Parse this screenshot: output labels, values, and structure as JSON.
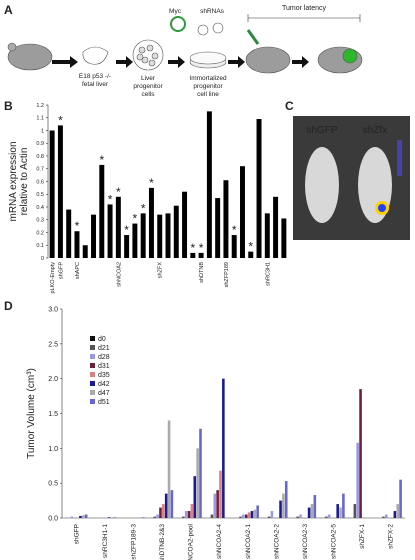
{
  "panel_labels": [
    "A",
    "B",
    "C",
    "D"
  ],
  "schematic": {
    "myc": "Myc",
    "shrnas": "shRNAs",
    "latency": "Tumor latency",
    "step1": [
      "E18 p53 -/-",
      "fetal liver"
    ],
    "step2": [
      "Liver",
      "progenitor",
      "cells"
    ],
    "step3": [
      "Immortalized",
      "progenitor",
      "cell line"
    ]
  },
  "imaging": {
    "left": "shGFP",
    "right": "shZfx"
  },
  "chart_data": [
    {
      "type": "bar",
      "ylabel": [
        "mRNA expression",
        "relative to Actin"
      ],
      "categories": [
        "pLKO-Empty",
        "shGFP",
        null,
        "shAPC",
        null,
        null,
        null,
        null,
        "shNCOA2",
        null,
        null,
        null,
        null,
        "shZFX",
        null,
        null,
        null,
        null,
        "shDTNB",
        null,
        null,
        "shZFP189",
        null,
        null,
        null,
        null,
        "shRC3H1",
        null,
        null
      ],
      "values": [
        1.0,
        1.04,
        0.38,
        0.21,
        0.1,
        0.34,
        0.73,
        0.42,
        0.48,
        0.18,
        0.27,
        0.35,
        0.55,
        0.34,
        0.35,
        0.41,
        0.52,
        0.04,
        0.04,
        1.15,
        0.47,
        0.61,
        0.18,
        0.72,
        0.05,
        1.09,
        0.35,
        0.48,
        0.31
      ],
      "stars": [
        null,
        "*",
        null,
        "*",
        null,
        null,
        "*",
        "*",
        "*",
        "*",
        "*",
        "*",
        "*",
        null,
        null,
        null,
        null,
        "*",
        "*",
        null,
        null,
        null,
        "*",
        null,
        "*",
        null,
        null,
        null,
        null
      ],
      "color": "#000000",
      "star_color": "#5b7fc4",
      "ylim": [
        0,
        1.2
      ],
      "yticks": [
        0,
        0.1,
        0.2,
        0.3,
        0.4,
        0.5,
        0.6,
        0.7,
        0.8,
        0.9,
        1,
        1.1,
        1.2
      ],
      "grid": false
    },
    {
      "type": "grouped-bar",
      "ylabel": "Tumor Volume (cm³)",
      "categories": [
        "shGFP",
        "shRC3H1-1",
        "shZFP189-3",
        "shDTNB-2&3",
        "shNCOA2-pool",
        "shNCOA2-4",
        "shNCOA2-1",
        "shNCOA2-2",
        "shNCOA2-3",
        "shNCOA2-5",
        "shZFX-1",
        "shZFX-2"
      ],
      "series": [
        {
          "name": "d0",
          "color": "#111111",
          "values": [
            0,
            0,
            0,
            0,
            0,
            0,
            0,
            0,
            0,
            0,
            0,
            0
          ]
        },
        {
          "name": "d21",
          "color": "#555555",
          "values": [
            0,
            0,
            0,
            0.02,
            0.02,
            0.05,
            0.02,
            0.02,
            0.02,
            0.02,
            0.2,
            0.02
          ]
        },
        {
          "name": "d28",
          "color": "#9a9ae0",
          "values": [
            0.02,
            0,
            0,
            0.05,
            0.1,
            0.35,
            0.05,
            0.1,
            0.05,
            0.05,
            1.08,
            0.05
          ]
        },
        {
          "name": "d31",
          "color": "#6b1f3a",
          "values": [
            null,
            null,
            null,
            0.15,
            0.1,
            0.4,
            0.05,
            null,
            null,
            null,
            1.85,
            null
          ]
        },
        {
          "name": "d35",
          "color": "#d98080",
          "values": [
            null,
            null,
            null,
            0.2,
            0.2,
            0.68,
            0.08,
            null,
            null,
            null,
            null,
            null
          ]
        },
        {
          "name": "d42",
          "color": "#1a1a99",
          "values": [
            0.03,
            0.01,
            0,
            0.35,
            0.6,
            2.0,
            0.1,
            0.25,
            0.15,
            0.2,
            null,
            0.1
          ]
        },
        {
          "name": "d47",
          "color": "#aaaaaa",
          "values": [
            0.04,
            0.01,
            0.01,
            1.4,
            1.0,
            null,
            0.12,
            0.35,
            0.2,
            0.15,
            null,
            0.2
          ]
        },
        {
          "name": "d51",
          "color": "#6666cc",
          "values": [
            0.05,
            0.01,
            0.01,
            0.4,
            1.28,
            null,
            0.18,
            0.53,
            0.33,
            0.35,
            null,
            0.55
          ]
        }
      ],
      "ylim": [
        0,
        3.0
      ],
      "yticks": [
        {
          "value": 0,
          "label": "0.0"
        },
        {
          "value": 0.5,
          "label": "0.5"
        },
        {
          "value": 1.0,
          "label": "1.0"
        },
        {
          "value": 1.5,
          "label": "1.5"
        },
        {
          "value": 2.0,
          "label": "2.0"
        },
        {
          "value": 2.5,
          "label": "2.5"
        },
        {
          "value": 3.0,
          "label": "3.0"
        }
      ],
      "legend": "upper left",
      "grid": false
    }
  ]
}
